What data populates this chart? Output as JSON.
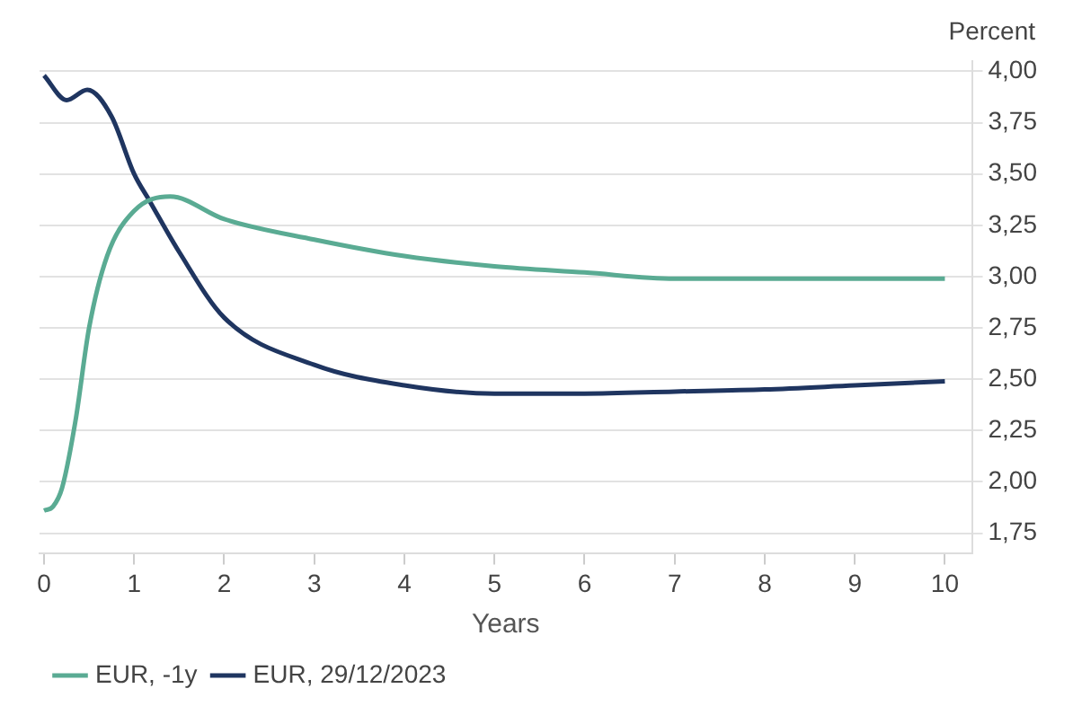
{
  "chart_data": {
    "type": "line",
    "xlabel": "Years",
    "ylabel": "Percent",
    "xlim": [
      -0.05,
      10.3
    ],
    "xticks": [
      0,
      1,
      2,
      3,
      4,
      5,
      6,
      7,
      8,
      9,
      10
    ],
    "ylim": [
      1.65,
      4.05
    ],
    "yticks": [
      {
        "value": 1.75,
        "label": "1,75"
      },
      {
        "value": 2,
        "label": "2,00"
      },
      {
        "value": 2.25,
        "label": "2,25"
      },
      {
        "value": 2.5,
        "label": "2,50"
      },
      {
        "value": 2.75,
        "label": "2,75"
      },
      {
        "value": 3,
        "label": "3,00"
      },
      {
        "value": 3.25,
        "label": "3,25"
      },
      {
        "value": 3.5,
        "label": "3,50"
      },
      {
        "value": 3.75,
        "label": "3,75"
      },
      {
        "value": 4,
        "label": "4,00"
      }
    ],
    "grid": "y",
    "legend": "bottom left",
    "marker": "none",
    "line_style": "solid",
    "series": [
      {
        "name": "EUR, -1y",
        "color": "#5aab93",
        "x": [
          0,
          0.1,
          0.2,
          0.35,
          0.5,
          0.7,
          1,
          1.4,
          2,
          3,
          4,
          5,
          6,
          7,
          8,
          9,
          10
        ],
        "values": [
          1.86,
          1.88,
          1.97,
          2.3,
          2.75,
          3.1,
          3.32,
          3.39,
          3.28,
          3.18,
          3.1,
          3.05,
          3.02,
          2.99,
          2.99,
          2.99,
          2.99
        ]
      },
      {
        "name": "EUR, 29/12/2023",
        "color": "#1f3560",
        "x": [
          0,
          0.25,
          0.48,
          0.75,
          1,
          1.17,
          1.5,
          2,
          3,
          4,
          5,
          6,
          7,
          8,
          9,
          10
        ],
        "values": [
          3.98,
          3.86,
          3.91,
          3.78,
          3.5,
          3.37,
          3.12,
          2.8,
          2.57,
          2.47,
          2.43,
          2.43,
          2.44,
          2.45,
          2.47,
          2.49
        ]
      }
    ]
  }
}
